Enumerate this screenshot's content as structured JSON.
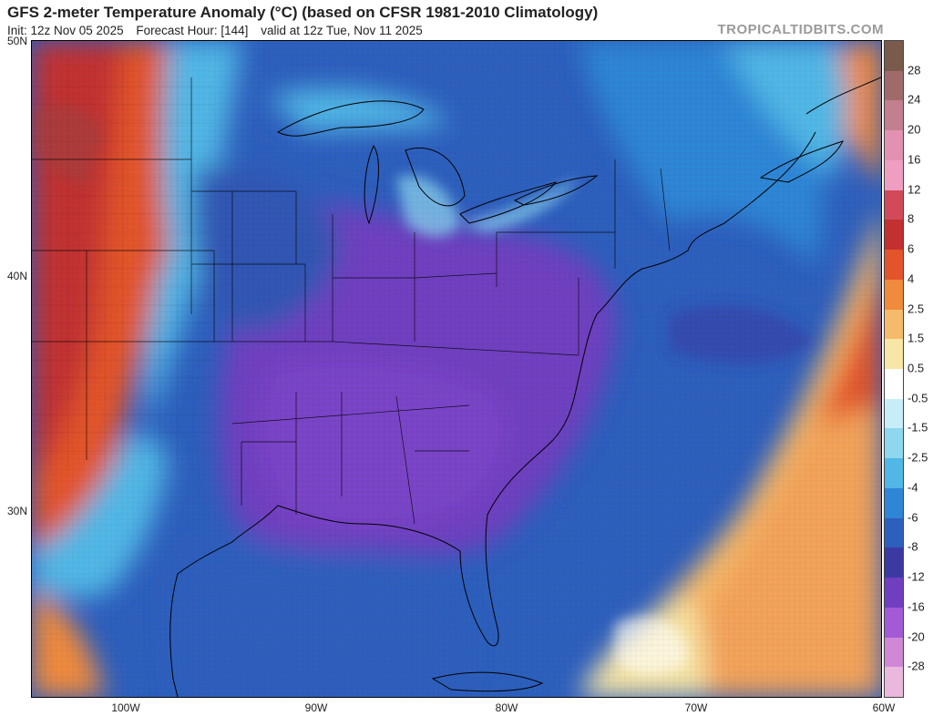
{
  "header": {
    "title": "GFS 2-meter Temperature Anomaly (°C) (based on CFSR 1981-2010 Climatology)",
    "init": "Init: 12z Nov 05 2025",
    "forecast_hour": "Forecast Hour: [144]",
    "valid": "valid at 12z Tue, Nov 11 2025",
    "brand": "TROPICALTIDBITS.COM"
  },
  "map": {
    "lat_labels": [
      "50N",
      "40N",
      "30N"
    ],
    "lon_labels": [
      "100W",
      "90W",
      "80W",
      "70W",
      "60W"
    ],
    "lat_range": [
      21,
      50
    ],
    "lon_range": [
      -104.5,
      -60
    ]
  },
  "colorbar": {
    "labels": [
      "28",
      "24",
      "20",
      "16",
      "12",
      "8",
      "6",
      "4",
      "2.5",
      "1.5",
      "0.5",
      "-0.5",
      "-1.5",
      "-2.5",
      "-4",
      "-6",
      "-8",
      "-12",
      "-16",
      "-20",
      "-28"
    ],
    "colors": [
      "#7a5a4a",
      "#a06a6a",
      "#c27f8f",
      "#e291b2",
      "#ef9ec2",
      "#d24a5a",
      "#c23030",
      "#e3542b",
      "#f08a3c",
      "#f6bb6a",
      "#f8e6a6",
      "#ffffff",
      "#c7eef8",
      "#8ed7ef",
      "#51b7e6",
      "#2f86d6",
      "#2d5fbd",
      "#3b3aa2",
      "#6f3fc0",
      "#a35ad6",
      "#d087d8",
      "#eab8dc"
    ]
  }
}
